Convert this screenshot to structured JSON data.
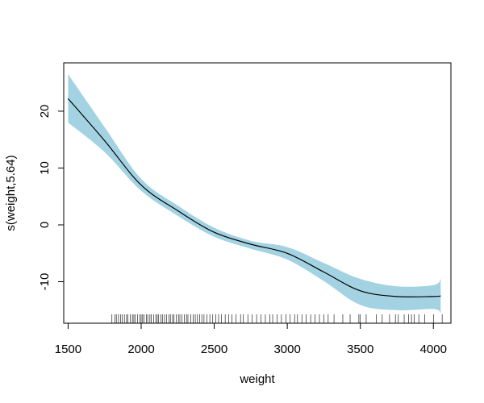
{
  "chart_data": {
    "type": "line",
    "title": "",
    "xlabel": "weight",
    "ylabel": "s(weight,5.64)",
    "xlim": [
      1470,
      4120
    ],
    "ylim": [
      -17.3,
      28.5
    ],
    "x_ticks": [
      1500,
      2000,
      2500,
      3000,
      3500,
      4000
    ],
    "x_tick_labels": [
      "1500",
      "2000",
      "2500",
      "3000",
      "3500",
      "4000"
    ],
    "y_ticks": [
      -10,
      0,
      10,
      20
    ],
    "y_tick_labels": [
      "-10",
      "0",
      "10",
      "20"
    ],
    "grid": false,
    "legend": "none",
    "colors": {
      "band": "#a3d3e2",
      "line": "#000000",
      "axis": "#000000"
    },
    "series": [
      {
        "x": [
          1500,
          1750,
          2000,
          2250,
          2500,
          2750,
          3000,
          3250,
          3500,
          3750,
          4000,
          4050
        ],
        "y": [
          22.2,
          14.8,
          7.0,
          2.5,
          -1.3,
          -3.4,
          -5.0,
          -8.3,
          -11.6,
          -12.6,
          -12.6,
          -12.5
        ],
        "ci_lower": [
          18.0,
          12.8,
          6.0,
          1.6,
          -2.1,
          -4.2,
          -6.1,
          -9.9,
          -14.1,
          -15.0,
          -14.8,
          -15.5
        ],
        "ci_upper": [
          26.5,
          17.2,
          8.1,
          3.4,
          -0.5,
          -2.8,
          -3.9,
          -6.7,
          -9.5,
          -10.8,
          -10.6,
          -9.5
        ]
      }
    ],
    "rug": [
      1800,
      1820,
      1830,
      1845,
      1860,
      1870,
      1885,
      1900,
      1910,
      1925,
      1940,
      1950,
      1960,
      1975,
      1990,
      2000,
      2010,
      2020,
      2035,
      2045,
      2060,
      2070,
      2085,
      2100,
      2110,
      2120,
      2135,
      2145,
      2160,
      2175,
      2190,
      2200,
      2215,
      2225,
      2240,
      2255,
      2265,
      2280,
      2295,
      2310,
      2320,
      2340,
      2355,
      2370,
      2385,
      2400,
      2415,
      2430,
      2450,
      2470,
      2490,
      2510,
      2530,
      2550,
      2575,
      2600,
      2620,
      2650,
      2680,
      2700,
      2730,
      2760,
      2790,
      2820,
      2850,
      2880,
      2900,
      2930,
      2960,
      2990,
      3020,
      3050,
      3070,
      3100,
      3130,
      3160,
      3190,
      3220,
      3250,
      3280,
      3320,
      3380,
      3430,
      3490,
      3500,
      3540,
      3610,
      3650,
      3700,
      3740,
      3760,
      3800,
      3830,
      3850,
      3870,
      3900,
      3940,
      4000,
      4060
    ]
  }
}
